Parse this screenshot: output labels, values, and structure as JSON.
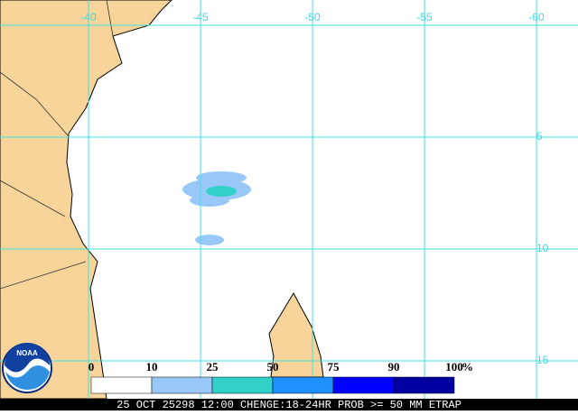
{
  "map": {
    "lon_labels": [
      "-40",
      "-45",
      "-50",
      "-55",
      "-60"
    ],
    "lat_labels": [
      "-5",
      "-10",
      "-15"
    ],
    "legend": {
      "labels": [
        "0",
        "10",
        "25",
        "50",
        "75",
        "90",
        "100"
      ],
      "unit": "%",
      "colors": [
        "#ffffff",
        "#99c8f8",
        "#30d0c8",
        "#1e90ff",
        "#0000ff",
        "#0000a0"
      ]
    },
    "footer": "25 OCT 25298 12:00 CHENGE:18-24HR PROB >= 50 MM ETRAP"
  }
}
